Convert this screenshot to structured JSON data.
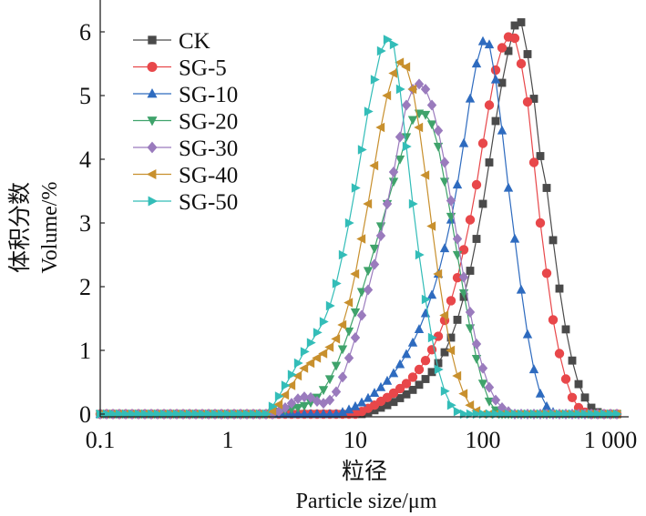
{
  "chart_data": {
    "type": "line",
    "title": "",
    "xlabel_cn": "粒径",
    "xlabel": "Particle size/μm",
    "ylabel_cn": "体积分数",
    "ylabel": "Volume/%",
    "xscale": "log",
    "xlim": [
      0.1,
      1150
    ],
    "ylim": [
      0,
      6.5
    ],
    "grid": false,
    "legend_position": "top-left",
    "x_ticks": [
      {
        "value": 0.1,
        "label": "0.1"
      },
      {
        "value": 1,
        "label": "1"
      },
      {
        "value": 10,
        "label": "10"
      },
      {
        "value": 100,
        "label": "100"
      },
      {
        "value": 1000,
        "label": "1 000"
      }
    ],
    "y_ticks": [
      {
        "value": 0,
        "label": "0"
      },
      {
        "value": 1,
        "label": "1"
      },
      {
        "value": 2,
        "label": "2"
      },
      {
        "value": 3,
        "label": "3"
      },
      {
        "value": 4,
        "label": "4"
      },
      {
        "value": 5,
        "label": "5"
      },
      {
        "value": 6,
        "label": "6"
      }
    ],
    "x_grid_note": "x = 0.1 * 10^(i/20), i = 0..81",
    "x_count": 82,
    "series": [
      {
        "name": "CK",
        "color": "#4a4a4a",
        "marker": "square",
        "values": [
          0,
          0,
          0,
          0,
          0,
          0,
          0,
          0,
          0,
          0,
          0,
          0,
          0,
          0,
          0,
          0,
          0,
          0,
          0,
          0,
          0,
          0,
          0,
          0,
          0,
          0,
          0,
          0,
          0,
          0,
          0,
          0,
          0,
          0,
          0,
          0,
          0,
          0,
          0,
          0,
          0,
          0,
          0.03,
          0.06,
          0.1,
          0.14,
          0.19,
          0.25,
          0.31,
          0.38,
          0.46,
          0.55,
          0.66,
          0.8,
          0.97,
          1.2,
          1.48,
          1.84,
          2.25,
          2.75,
          3.3,
          3.95,
          4.6,
          5.2,
          5.7,
          6.1,
          6.15,
          5.65,
          4.95,
          4.05,
          3.55,
          2.73,
          1.97,
          1.33,
          0.84,
          0.47,
          0.26,
          0.1,
          0.03,
          0,
          0,
          0
        ]
      },
      {
        "name": "SG-5",
        "color": "#e8474a",
        "marker": "circle",
        "values": [
          0,
          0,
          0,
          0,
          0,
          0,
          0,
          0,
          0,
          0,
          0,
          0,
          0,
          0,
          0,
          0,
          0,
          0,
          0,
          0,
          0,
          0,
          0,
          0,
          0,
          0,
          0,
          0,
          0,
          0,
          0,
          0,
          0,
          0,
          0,
          0,
          0,
          0,
          0,
          0,
          0,
          0.04,
          0.09,
          0.14,
          0.2,
          0.26,
          0.33,
          0.4,
          0.48,
          0.58,
          0.7,
          0.84,
          1.01,
          1.22,
          1.47,
          1.78,
          2.14,
          2.58,
          3.05,
          3.6,
          4.25,
          4.85,
          5.4,
          5.75,
          5.92,
          5.9,
          5.5,
          4.9,
          3.95,
          3.0,
          2.21,
          1.48,
          0.95,
          0.55,
          0.26,
          0.1,
          0.03,
          0,
          0,
          0,
          0,
          0
        ]
      },
      {
        "name": "SG-10",
        "color": "#2e6bbf",
        "marker": "triangle-up",
        "values": [
          0,
          0,
          0,
          0,
          0,
          0,
          0,
          0,
          0,
          0,
          0,
          0,
          0,
          0,
          0,
          0,
          0,
          0,
          0,
          0,
          0,
          0,
          0,
          0,
          0,
          0,
          0,
          0,
          0,
          0,
          0,
          0,
          0,
          0,
          0,
          0,
          0,
          0,
          0.03,
          0.07,
          0.12,
          0.18,
          0.25,
          0.33,
          0.42,
          0.52,
          0.64,
          0.78,
          0.94,
          1.12,
          1.33,
          1.58,
          1.87,
          2.2,
          2.6,
          3.05,
          3.6,
          4.25,
          4.95,
          5.5,
          5.85,
          5.8,
          5.25,
          4.45,
          3.55,
          2.75,
          1.95,
          1.25,
          0.7,
          0.32,
          0.12,
          0.03,
          0,
          0,
          0,
          0,
          0,
          0,
          0,
          0,
          0,
          0
        ]
      },
      {
        "name": "SG-20",
        "color": "#3fa36b",
        "marker": "triangle-down",
        "values": [
          0,
          0,
          0,
          0,
          0,
          0,
          0,
          0,
          0,
          0,
          0,
          0,
          0,
          0,
          0,
          0,
          0,
          0,
          0,
          0,
          0,
          0,
          0,
          0,
          0,
          0,
          0,
          0.02,
          0.04,
          0.06,
          0.08,
          0.1,
          0.13,
          0.18,
          0.26,
          0.38,
          0.55,
          0.76,
          1.02,
          1.3,
          1.6,
          1.92,
          2.25,
          2.6,
          2.95,
          3.3,
          3.65,
          4.0,
          4.35,
          4.62,
          4.72,
          4.7,
          4.55,
          4.2,
          3.65,
          3.1,
          2.5,
          1.9,
          1.35,
          0.87,
          0.48,
          0.2,
          0.06,
          0,
          0,
          0,
          0,
          0,
          0,
          0,
          0,
          0,
          0,
          0,
          0,
          0,
          0,
          0,
          0,
          0,
          0,
          0
        ]
      },
      {
        "name": "SG-30",
        "color": "#9a7bbd",
        "marker": "diamond",
        "values": [
          0,
          0,
          0,
          0,
          0,
          0,
          0,
          0,
          0,
          0,
          0,
          0,
          0,
          0,
          0,
          0,
          0,
          0,
          0,
          0,
          0,
          0,
          0,
          0,
          0,
          0,
          0,
          0,
          0.04,
          0.1,
          0.17,
          0.24,
          0.27,
          0.26,
          0.2,
          0.17,
          0.22,
          0.35,
          0.58,
          0.88,
          1.2,
          1.55,
          1.95,
          2.35,
          2.8,
          3.3,
          3.8,
          4.35,
          4.85,
          5.1,
          5.18,
          5.1,
          4.85,
          4.45,
          3.95,
          3.35,
          2.75,
          2.15,
          1.6,
          1.1,
          0.72,
          0.42,
          0.22,
          0.1,
          0.04,
          0,
          0,
          0,
          0,
          0,
          0,
          0,
          0,
          0,
          0,
          0,
          0,
          0,
          0,
          0,
          0,
          0
        ]
      },
      {
        "name": "SG-40",
        "color": "#c8902e",
        "marker": "triangle-left",
        "values": [
          0,
          0,
          0,
          0,
          0,
          0,
          0,
          0,
          0,
          0,
          0,
          0,
          0,
          0,
          0,
          0,
          0,
          0,
          0,
          0,
          0,
          0,
          0,
          0,
          0,
          0,
          0,
          0.05,
          0.15,
          0.3,
          0.45,
          0.6,
          0.72,
          0.8,
          0.88,
          0.95,
          1.05,
          1.18,
          1.4,
          1.75,
          2.2,
          2.75,
          3.3,
          3.9,
          4.5,
          5.0,
          5.35,
          5.52,
          5.45,
          5.1,
          4.5,
          3.75,
          2.95,
          2.2,
          1.55,
          1.0,
          0.6,
          0.32,
          0.14,
          0.05,
          0,
          0,
          0,
          0,
          0,
          0,
          0,
          0,
          0,
          0,
          0,
          0,
          0,
          0,
          0,
          0,
          0,
          0,
          0,
          0,
          0,
          0
        ]
      },
      {
        "name": "SG-50",
        "color": "#33bdb8",
        "marker": "triangle-right",
        "values": [
          0,
          0,
          0,
          0,
          0,
          0,
          0,
          0,
          0,
          0,
          0,
          0,
          0,
          0,
          0,
          0,
          0,
          0,
          0,
          0,
          0,
          0,
          0,
          0,
          0,
          0,
          0,
          0.12,
          0.28,
          0.45,
          0.62,
          0.8,
          0.98,
          1.12,
          1.28,
          1.45,
          1.7,
          2.05,
          2.5,
          3.0,
          3.55,
          4.15,
          4.75,
          5.25,
          5.7,
          5.88,
          5.8,
          5.1,
          4.2,
          3.3,
          2.5,
          1.8,
          1.2,
          0.7,
          0.36,
          0.14,
          0.04,
          0,
          0,
          0,
          0,
          0,
          0,
          0,
          0,
          0,
          0,
          0,
          0,
          0,
          0,
          0,
          0,
          0,
          0,
          0,
          0,
          0,
          0,
          0,
          0,
          0
        ]
      }
    ]
  }
}
